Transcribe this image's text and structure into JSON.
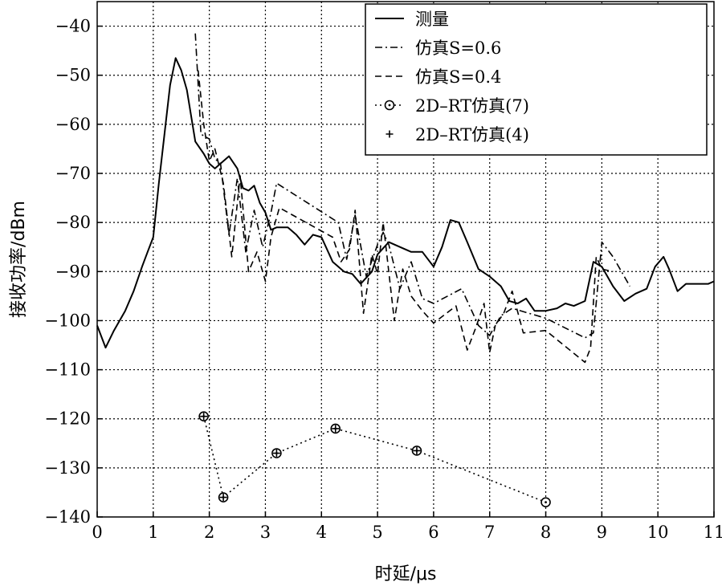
{
  "chart_data": {
    "type": "line",
    "xlabel": "时延/μs",
    "ylabel": "接收功率/dBm",
    "xlim": [
      0,
      11
    ],
    "ylim": [
      -140,
      -35
    ],
    "xticks": [
      0,
      1,
      2,
      3,
      4,
      5,
      6,
      7,
      8,
      9,
      10,
      11
    ],
    "yticks": [
      -40,
      -50,
      -60,
      -70,
      -80,
      -90,
      -100,
      -110,
      -120,
      -130,
      -140
    ],
    "xtick_labels": [
      "0",
      "1",
      "2",
      "3",
      "4",
      "5",
      "6",
      "7",
      "8",
      "9",
      "10",
      "11"
    ],
    "ytick_labels": [
      "−40",
      "−50",
      "−60",
      "−70",
      "−80",
      "−90",
      "−100",
      "−110",
      "−120",
      "−130",
      "−140"
    ],
    "grid": true,
    "legend_position": "top-right",
    "series": [
      {
        "name": "测量",
        "style": "solid",
        "x": [
          0,
          0.15,
          0.3,
          0.5,
          0.65,
          0.8,
          0.9,
          1.0,
          1.1,
          1.2,
          1.3,
          1.4,
          1.5,
          1.6,
          1.75,
          1.9,
          2.0,
          2.1,
          2.2,
          2.35,
          2.5,
          2.6,
          2.7,
          2.8,
          2.9,
          3.0,
          3.1,
          3.2,
          3.4,
          3.55,
          3.7,
          3.85,
          4.0,
          4.2,
          4.4,
          4.55,
          4.7,
          4.9,
          5.0,
          5.2,
          5.4,
          5.6,
          5.8,
          6.0,
          6.15,
          6.3,
          6.45,
          6.6,
          6.8,
          7.0,
          7.2,
          7.35,
          7.5,
          7.65,
          7.8,
          8.0,
          8.2,
          8.35,
          8.5,
          8.7,
          8.85,
          9.0,
          9.2,
          9.4,
          9.6,
          9.8,
          9.95,
          10.1,
          10.2,
          10.35,
          10.5,
          10.7,
          10.9,
          11.0
        ],
        "y": [
          -101,
          -105.5,
          -102,
          -98,
          -94,
          -89,
          -86,
          -83,
          -72,
          -62,
          -52,
          -46.5,
          -49,
          -53,
          -63.5,
          -66,
          -68,
          -69,
          -68,
          -66.5,
          -69,
          -73,
          -73.5,
          -72.5,
          -76,
          -78,
          -81.5,
          -81,
          -81,
          -82.5,
          -84.5,
          -82.5,
          -83,
          -88,
          -90,
          -90.5,
          -92.5,
          -90,
          -86.5,
          -84,
          -85,
          -86,
          -86,
          -89,
          -85,
          -79.5,
          -80,
          -84,
          -89.5,
          -91,
          -93,
          -96,
          -96.5,
          -95.5,
          -98,
          -98,
          -97.5,
          -96.5,
          -97,
          -96,
          -88,
          -89,
          -93,
          -96,
          -94.5,
          -93.5,
          -89,
          -87,
          -89.5,
          -94,
          -92.5,
          -92.5,
          -92.5,
          -92
        ]
      },
      {
        "name": "仿真S=0.6",
        "style": "dashdot",
        "x": [
          1.75,
          1.85,
          2.0,
          2.1,
          2.2,
          2.35,
          2.5,
          2.65,
          2.8,
          2.95,
          3.1,
          3.2,
          4.3,
          4.45,
          4.6,
          4.8,
          5.0,
          5.1,
          5.2,
          5.4,
          5.6,
          5.8,
          6.0,
          6.5,
          6.8,
          7.0,
          7.2,
          7.4,
          8.0,
          8.7,
          8.85,
          9.0,
          9.2,
          9.5
        ],
        "y": [
          -41.5,
          -62,
          -63,
          -67,
          -68,
          -82.5,
          -71,
          -86,
          -77.5,
          -85,
          -78,
          -72,
          -80,
          -87.5,
          -78.5,
          -91,
          -84.5,
          -82,
          -84.5,
          -93.5,
          -88,
          -95.5,
          -96.5,
          -93.5,
          -101,
          -103,
          -99,
          -97.5,
          -99.5,
          -103.5,
          -102.5,
          -84,
          -87,
          -93
        ]
      },
      {
        "name": "仿真S=0.4",
        "style": "dashed",
        "x": [
          1.8,
          1.9,
          2.0,
          2.1,
          2.25,
          2.4,
          2.55,
          2.7,
          2.85,
          3.0,
          3.1,
          3.25,
          4.2,
          4.35,
          4.5,
          4.6,
          4.75,
          4.9,
          5.0,
          5.1,
          5.3,
          5.45,
          5.6,
          5.8,
          6.0,
          6.4,
          6.6,
          6.75,
          6.9,
          7.0,
          7.1,
          7.25,
          7.4,
          7.6,
          8.0,
          8.7,
          8.8,
          8.9,
          9.0,
          9.2
        ],
        "y": [
          -49,
          -60,
          -67.5,
          -65,
          -72,
          -87,
          -70.5,
          -90,
          -86,
          -92,
          -83,
          -77,
          -83,
          -88,
          -85.5,
          -77.5,
          -98.5,
          -86.5,
          -90.5,
          -80,
          -100,
          -89.5,
          -95,
          -98,
          -100.5,
          -97,
          -106,
          -101.5,
          -96.5,
          -106.5,
          -101,
          -98.5,
          -94,
          -102.5,
          -102,
          -108.5,
          -105.5,
          -87,
          -89.5,
          -90
        ]
      },
      {
        "name": "2D–RT仿真(7)",
        "style": "dotted-circle",
        "x": [
          1.9,
          2.25,
          3.2,
          4.25,
          5.7,
          8.0
        ],
        "y": [
          -119.5,
          -136,
          -127,
          -122,
          -126.5,
          -137
        ]
      },
      {
        "name": "2D–RT仿真(4)",
        "style": "plus",
        "x": [
          1.9,
          2.25,
          3.2,
          4.25,
          5.7
        ],
        "y": [
          -119.5,
          -136,
          -127,
          -122,
          -126.5
        ]
      }
    ]
  }
}
